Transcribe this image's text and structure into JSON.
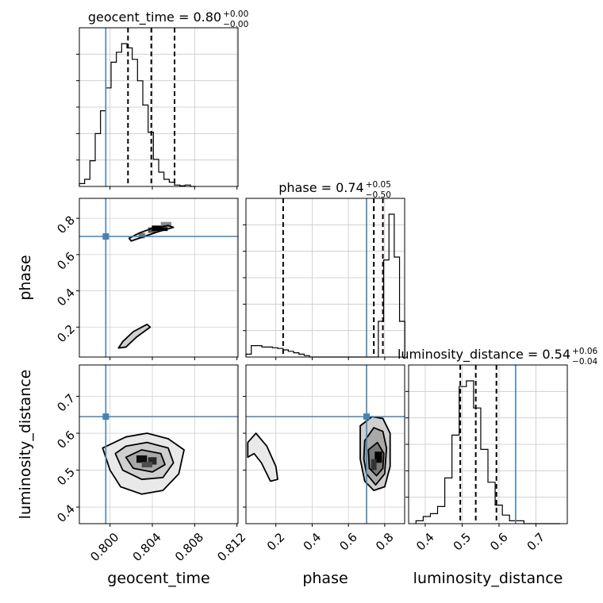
{
  "chart_data": {
    "type": "corner",
    "truth_color": "#4682b4",
    "hist_color": "#000000",
    "parameters": [
      {
        "name": "geocent_time",
        "axis_label": "geocent_time",
        "title": {
          "text": "geocent_time = 0.80",
          "sup": "+0.00",
          "sub": "−0.00"
        },
        "range": [
          0.7971,
          0.8121
        ],
        "ticks": [
          0.8,
          0.804,
          0.808,
          0.812
        ],
        "tick_labels": [
          "0.800",
          "0.804",
          "0.808",
          "0.812"
        ],
        "truth": 0.7996,
        "quantiles": [
          0.8017,
          0.8039,
          0.8061
        ],
        "hist": {
          "start": 0.7971,
          "width": 0.0005,
          "counts": [
            0.02,
            0.05,
            0.18,
            0.37,
            0.53,
            0.69,
            0.87,
            0.94,
            1.0,
            0.97,
            0.89,
            0.74,
            0.57,
            0.38,
            0.19,
            0.1,
            0.05,
            0.03,
            0.01,
            0.005,
            0.01,
            0.0
          ]
        }
      },
      {
        "name": "phase",
        "axis_label": "phase",
        "title": {
          "text": "phase = 0.74",
          "sup": "+0.05",
          "sub": "−0.50"
        },
        "range": [
          0.035,
          0.91
        ],
        "ticks": [
          0.2,
          0.4,
          0.6,
          0.8
        ],
        "tick_labels": [
          "0.2",
          "0.4",
          "0.6",
          "0.8"
        ],
        "truth": 0.7,
        "quantiles": [
          0.24,
          0.74,
          0.79
        ],
        "hist": {
          "start": 0.035,
          "width": 0.0292,
          "counts": [
            0.02,
            0.08,
            0.08,
            0.07,
            0.07,
            0.065,
            0.06,
            0.05,
            0.04,
            0.03,
            0.02,
            0.01,
            0.0,
            0.0,
            0.0,
            0.0,
            0.0,
            0.0,
            0.0,
            0.0,
            0.0,
            0.0,
            0.0,
            0.0,
            0.0,
            0.25,
            0.68,
            1.0,
            0.7,
            0.25
          ]
        }
      },
      {
        "name": "luminosity_distance",
        "axis_label": "luminosity_distance",
        "title": {
          "text": "luminosity_distance = 0.54",
          "sup": "+0.06",
          "sub": "−0.04"
        },
        "range": [
          0.355,
          0.785
        ],
        "ticks": [
          0.4,
          0.5,
          0.6,
          0.7
        ],
        "tick_labels": [
          "0.4",
          "0.5",
          "0.6",
          "0.7"
        ],
        "truth": 0.645,
        "quantiles": [
          0.495,
          0.537,
          0.593
        ],
        "hist": {
          "start": 0.375,
          "width": 0.0195,
          "counts": [
            0.02,
            0.05,
            0.07,
            0.12,
            0.32,
            0.62,
            0.96,
            1.0,
            0.81,
            0.52,
            0.29,
            0.13,
            0.06,
            0.02,
            0.02,
            0.0,
            0.0,
            0.0,
            0.0,
            0.0
          ]
        }
      }
    ],
    "pairs": [
      {
        "x": "geocent_time",
        "y": "phase",
        "contours": [
          [
            [
              0.8018,
              0.69
            ],
            [
              0.8028,
              0.72
            ],
            [
              0.804,
              0.745
            ],
            [
              0.8055,
              0.76
            ],
            [
              0.806,
              0.75
            ],
            [
              0.8045,
              0.725
            ],
            [
              0.803,
              0.695
            ],
            [
              0.802,
              0.675
            ]
          ],
          [
            [
              0.8008,
              0.085
            ],
            [
              0.8012,
              0.12
            ],
            [
              0.8022,
              0.175
            ],
            [
              0.8035,
              0.215
            ],
            [
              0.8038,
              0.2
            ],
            [
              0.8025,
              0.145
            ],
            [
              0.8015,
              0.09
            ]
          ]
        ],
        "density_cells": [
          {
            "x": 0.803,
            "y": 0.705,
            "w": 0.0006,
            "h": 0.03,
            "v": 0.55
          },
          {
            "x": 0.804,
            "y": 0.735,
            "w": 0.0008,
            "h": 0.03,
            "v": 0.65
          },
          {
            "x": 0.8047,
            "y": 0.745,
            "w": 0.0015,
            "h": 0.03,
            "v": 1.0
          },
          {
            "x": 0.8053,
            "y": 0.765,
            "w": 0.001,
            "h": 0.03,
            "v": 0.45
          }
        ]
      },
      {
        "x": "geocent_time",
        "y": "luminosity_distance",
        "contours": [
          [
            [
              0.7993,
              0.56
            ],
            [
              0.8,
              0.5
            ],
            [
              0.801,
              0.455
            ],
            [
              0.803,
              0.435
            ],
            [
              0.805,
              0.445
            ],
            [
              0.8065,
              0.49
            ],
            [
              0.807,
              0.555
            ],
            [
              0.8055,
              0.585
            ],
            [
              0.8035,
              0.6
            ],
            [
              0.8015,
              0.59
            ]
          ],
          [
            [
              0.8005,
              0.545
            ],
            [
              0.8012,
              0.5
            ],
            [
              0.803,
              0.475
            ],
            [
              0.805,
              0.48
            ],
            [
              0.806,
              0.52
            ],
            [
              0.8055,
              0.56
            ],
            [
              0.8035,
              0.575
            ],
            [
              0.8015,
              0.565
            ]
          ],
          [
            [
              0.8015,
              0.535
            ],
            [
              0.8022,
              0.505
            ],
            [
              0.804,
              0.495
            ],
            [
              0.8052,
              0.515
            ],
            [
              0.8048,
              0.545
            ],
            [
              0.803,
              0.555
            ]
          ]
        ],
        "density_cells": [
          {
            "x": 0.803,
            "y": 0.53,
            "w": 0.001,
            "h": 0.02,
            "v": 0.95
          },
          {
            "x": 0.804,
            "y": 0.525,
            "w": 0.0008,
            "h": 0.02,
            "v": 0.85
          },
          {
            "x": 0.8035,
            "y": 0.515,
            "w": 0.001,
            "h": 0.015,
            "v": 0.7
          }
        ]
      },
      {
        "x": "phase",
        "y": "luminosity_distance",
        "contours": [
          [
            [
              0.045,
              0.575
            ],
            [
              0.09,
              0.6
            ],
            [
              0.15,
              0.565
            ],
            [
              0.2,
              0.51
            ],
            [
              0.21,
              0.475
            ],
            [
              0.17,
              0.47
            ],
            [
              0.12,
              0.52
            ],
            [
              0.08,
              0.545
            ],
            [
              0.045,
              0.535
            ]
          ],
          [
            [
              0.665,
              0.62
            ],
            [
              0.73,
              0.645
            ],
            [
              0.79,
              0.64
            ],
            [
              0.83,
              0.6
            ],
            [
              0.83,
              0.51
            ],
            [
              0.8,
              0.455
            ],
            [
              0.74,
              0.445
            ],
            [
              0.69,
              0.47
            ],
            [
              0.665,
              0.53
            ]
          ],
          [
            [
              0.69,
              0.58
            ],
            [
              0.74,
              0.615
            ],
            [
              0.79,
              0.605
            ],
            [
              0.81,
              0.56
            ],
            [
              0.8,
              0.49
            ],
            [
              0.75,
              0.46
            ],
            [
              0.7,
              0.49
            ],
            [
              0.685,
              0.53
            ]
          ],
          [
            [
              0.71,
              0.555
            ],
            [
              0.76,
              0.575
            ],
            [
              0.795,
              0.545
            ],
            [
              0.79,
              0.505
            ],
            [
              0.755,
              0.485
            ],
            [
              0.715,
              0.505
            ]
          ]
        ],
        "density_cells": [
          {
            "x": 0.765,
            "y": 0.535,
            "w": 0.04,
            "h": 0.03,
            "v": 1.0
          },
          {
            "x": 0.74,
            "y": 0.515,
            "w": 0.03,
            "h": 0.03,
            "v": 0.8
          }
        ]
      }
    ]
  }
}
